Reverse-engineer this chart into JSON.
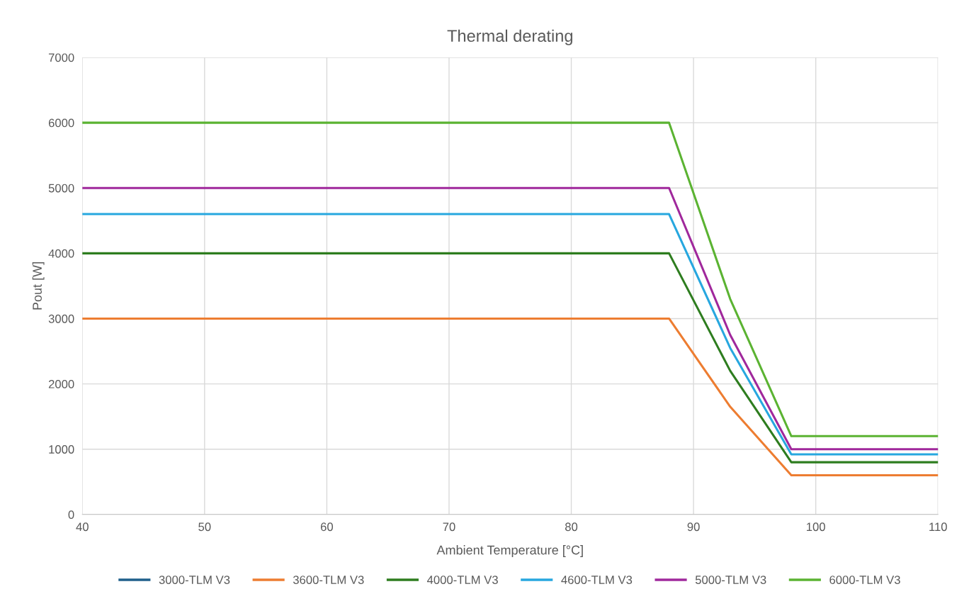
{
  "chart_data": {
    "type": "line",
    "title": "Thermal derating",
    "xlabel": "Ambient Temperature [°C]",
    "ylabel": "Pout [W]",
    "x": [
      40,
      88,
      93,
      98,
      110
    ],
    "series": [
      {
        "name": "3000-TLM V3",
        "color": "#1f5f8b",
        "values": [
          null,
          null,
          null,
          null,
          null
        ]
      },
      {
        "name": "3600-TLM V3",
        "color": "#ed7d31",
        "values": [
          3000,
          3000,
          1650,
          600,
          600
        ]
      },
      {
        "name": "4000-TLM V3",
        "color": "#2e7d1f",
        "values": [
          4000,
          4000,
          2200,
          800,
          800
        ]
      },
      {
        "name": "4600-TLM V3",
        "color": "#27a7df",
        "values": [
          4600,
          4600,
          2550,
          920,
          920
        ]
      },
      {
        "name": "5000-TLM V3",
        "color": "#a0289c",
        "values": [
          5000,
          5000,
          2750,
          1000,
          1000
        ]
      },
      {
        "name": "6000-TLM V3",
        "color": "#5bb332",
        "values": [
          6000,
          6000,
          3300,
          1200,
          1200
        ]
      }
    ],
    "xlim": [
      40,
      110
    ],
    "xticks": [
      40,
      50,
      60,
      70,
      80,
      90,
      100,
      110
    ],
    "ylim": [
      0,
      7000
    ],
    "yticks": [
      0,
      1000,
      2000,
      3000,
      4000,
      5000,
      6000,
      7000
    ],
    "grid": true,
    "legend": "bottom",
    "marker": "none",
    "line_style": "solid"
  }
}
